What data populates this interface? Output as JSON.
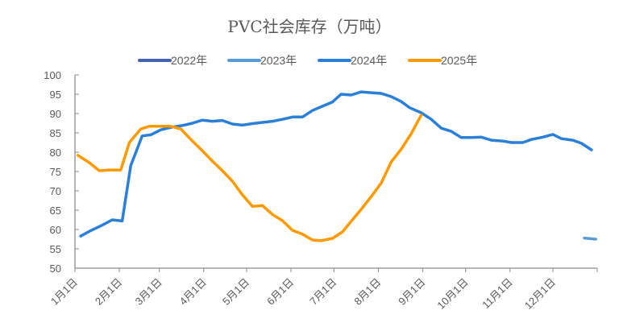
{
  "chart_data": {
    "type": "line",
    "title": "PVC社会库存（万吨）",
    "xlabel": "",
    "ylabel": "",
    "ylim": [
      50,
      100
    ],
    "yticks": [
      "50",
      "55",
      "60",
      "65",
      "70",
      "75",
      "80",
      "85",
      "90",
      "95",
      "100"
    ],
    "xlim_day_of_year": [
      0,
      365
    ],
    "xticks": [
      "1月1日",
      "2月1日",
      "3月1日",
      "4月1日",
      "5月1日",
      "6月1日",
      "7月1日",
      "8月1日",
      "9月1日",
      "10月1日",
      "11月1日",
      "12月1日"
    ],
    "xtick_days": [
      0,
      31,
      59,
      90,
      120,
      151,
      181,
      212,
      243,
      273,
      304,
      334,
      365
    ],
    "grid": false,
    "legend_position": "top",
    "series": [
      {
        "name": "2022年",
        "color": "#4462ad",
        "points": []
      },
      {
        "name": "2023年",
        "color": "#5b9bd5",
        "points": [
          [
            356,
            57.8
          ],
          [
            364,
            57.5
          ]
        ]
      },
      {
        "name": "2024年",
        "color": "#2a7fd8",
        "points": [
          [
            4,
            58.3
          ],
          [
            11,
            59.7
          ],
          [
            19,
            61.1
          ],
          [
            26,
            62.5
          ],
          [
            33,
            62.2
          ],
          [
            39,
            76.5
          ],
          [
            47,
            84.2
          ],
          [
            53,
            84.5
          ],
          [
            60,
            85.8
          ],
          [
            68,
            86.5
          ],
          [
            75,
            86.9
          ],
          [
            82,
            87.5
          ],
          [
            89,
            88.3
          ],
          [
            96,
            88.0
          ],
          [
            103,
            88.2
          ],
          [
            110,
            87.3
          ],
          [
            117,
            87.0
          ],
          [
            124,
            87.4
          ],
          [
            131,
            87.7
          ],
          [
            138,
            88.0
          ],
          [
            145,
            88.5
          ],
          [
            152,
            89.1
          ],
          [
            159,
            89.1
          ],
          [
            166,
            90.8
          ],
          [
            173,
            91.9
          ],
          [
            180,
            93.0
          ],
          [
            186,
            95.0
          ],
          [
            193,
            94.8
          ],
          [
            200,
            95.6
          ],
          [
            207,
            95.4
          ],
          [
            214,
            95.2
          ],
          [
            221,
            94.4
          ],
          [
            228,
            93.1
          ],
          [
            234,
            91.5
          ],
          [
            242,
            90.2
          ],
          [
            249,
            88.5
          ],
          [
            256,
            86.2
          ],
          [
            263,
            85.4
          ],
          [
            270,
            83.8
          ],
          [
            277,
            83.8
          ],
          [
            284,
            83.9
          ],
          [
            291,
            83.1
          ],
          [
            299,
            82.9
          ],
          [
            305,
            82.5
          ],
          [
            313,
            82.5
          ],
          [
            319,
            83.3
          ],
          [
            327,
            83.9
          ],
          [
            334,
            84.6
          ],
          [
            340,
            83.5
          ],
          [
            348,
            83.1
          ],
          [
            354,
            82.3
          ],
          [
            361,
            80.6
          ]
        ]
      },
      {
        "name": "2025年",
        "color": "#ff9900",
        "points": [
          [
            2,
            79.2
          ],
          [
            10,
            77.3
          ],
          [
            17,
            75.2
          ],
          [
            24,
            75.4
          ],
          [
            32,
            75.4
          ],
          [
            38,
            82.5
          ],
          [
            46,
            86.0
          ],
          [
            52,
            86.7
          ],
          [
            60,
            86.7
          ],
          [
            67,
            86.7
          ],
          [
            74,
            86.0
          ],
          [
            81,
            83.3
          ],
          [
            89,
            80.4
          ],
          [
            96,
            77.7
          ],
          [
            103,
            75.2
          ],
          [
            110,
            72.5
          ],
          [
            117,
            69.0
          ],
          [
            124,
            66.0
          ],
          [
            131,
            66.2
          ],
          [
            138,
            63.9
          ],
          [
            145,
            62.3
          ],
          [
            152,
            59.8
          ],
          [
            159,
            58.8
          ],
          [
            166,
            57.3
          ],
          [
            172,
            57.1
          ],
          [
            180,
            57.7
          ],
          [
            187,
            59.4
          ],
          [
            193,
            62.1
          ],
          [
            200,
            65.2
          ],
          [
            207,
            68.5
          ],
          [
            214,
            72.0
          ],
          [
            221,
            77.5
          ],
          [
            228,
            80.8
          ],
          [
            235,
            84.8
          ],
          [
            242,
            89.6
          ]
        ]
      }
    ]
  }
}
